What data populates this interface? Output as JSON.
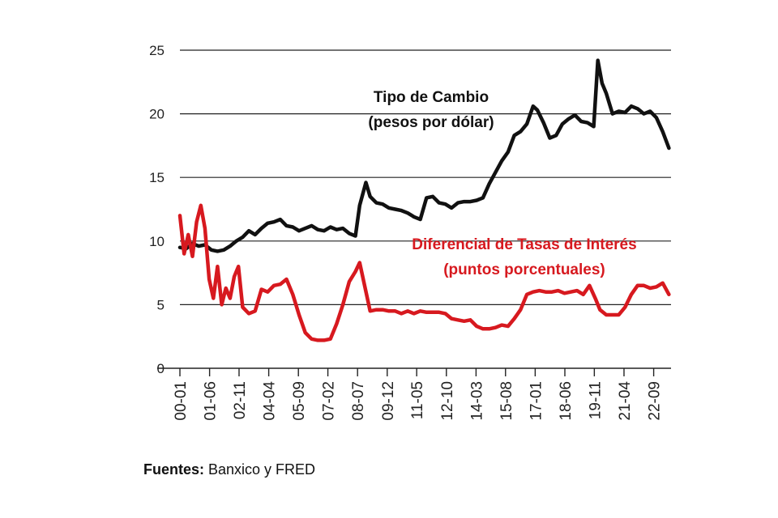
{
  "chart_data": {
    "type": "line",
    "title": "",
    "xlabel": "",
    "ylabel": "",
    "ylim": [
      0,
      25
    ],
    "yticks": [
      0,
      5,
      10,
      15,
      20,
      25
    ],
    "xlim": [
      2000.0,
      2023.5
    ],
    "xtick_labels": [
      "00-01",
      "01-06",
      "02-11",
      "04-04",
      "05-09",
      "07-02",
      "08-07",
      "09-12",
      "11-05",
      "12-10",
      "14-03",
      "15-08",
      "17-01",
      "18-06",
      "19-11",
      "21-04",
      "22-09"
    ],
    "xtick_positions": [
      2000.0,
      2001.42,
      2002.83,
      2004.25,
      2005.67,
      2007.08,
      2008.5,
      2009.92,
      2011.33,
      2012.75,
      2014.17,
      2015.58,
      2017.0,
      2018.42,
      2019.83,
      2021.25,
      2022.67
    ],
    "series": [
      {
        "name": "Tipo de Cambio",
        "label_lines": [
          "Tipo de Cambio",
          "(pesos por dólar)"
        ],
        "color": "#111111",
        "x": [
          2000.0,
          2000.3,
          2000.6,
          2000.9,
          2001.2,
          2001.5,
          2001.8,
          2002.1,
          2002.4,
          2002.7,
          2003.0,
          2003.3,
          2003.6,
          2003.9,
          2004.2,
          2004.5,
          2004.8,
          2005.1,
          2005.4,
          2005.7,
          2006.0,
          2006.3,
          2006.6,
          2006.9,
          2007.2,
          2007.5,
          2007.8,
          2008.1,
          2008.4,
          2008.6,
          2008.9,
          2009.1,
          2009.4,
          2009.7,
          2010.0,
          2010.3,
          2010.6,
          2010.9,
          2011.2,
          2011.5,
          2011.8,
          2012.1,
          2012.4,
          2012.7,
          2013.0,
          2013.3,
          2013.6,
          2013.9,
          2014.2,
          2014.5,
          2014.8,
          2015.1,
          2015.4,
          2015.7,
          2016.0,
          2016.3,
          2016.6,
          2016.9,
          2017.1,
          2017.4,
          2017.7,
          2018.0,
          2018.3,
          2018.6,
          2018.9,
          2019.2,
          2019.5,
          2019.8,
          2020.0,
          2020.2,
          2020.4,
          2020.7,
          2021.0,
          2021.3,
          2021.6,
          2021.9,
          2022.2,
          2022.5,
          2022.8,
          2023.1,
          2023.4
        ],
        "y": [
          9.5,
          9.4,
          9.8,
          9.6,
          9.7,
          9.3,
          9.2,
          9.3,
          9.6,
          10.0,
          10.3,
          10.8,
          10.5,
          11.0,
          11.4,
          11.5,
          11.7,
          11.2,
          11.1,
          10.8,
          11.0,
          11.2,
          10.9,
          10.8,
          11.1,
          10.9,
          11.0,
          10.6,
          10.4,
          12.8,
          14.6,
          13.5,
          13.0,
          12.9,
          12.6,
          12.5,
          12.4,
          12.2,
          11.9,
          11.7,
          13.4,
          13.5,
          13.0,
          12.9,
          12.6,
          13.0,
          13.1,
          13.1,
          13.2,
          13.4,
          14.5,
          15.4,
          16.3,
          17.0,
          18.3,
          18.6,
          19.2,
          20.6,
          20.3,
          19.3,
          18.1,
          18.3,
          19.2,
          19.6,
          19.9,
          19.4,
          19.3,
          19.0,
          24.2,
          22.4,
          21.6,
          20.0,
          20.2,
          20.1,
          20.6,
          20.4,
          20.0,
          20.2,
          19.7,
          18.6,
          17.3
        ]
      },
      {
        "name": "Diferencial de Tasas de Interés",
        "label_lines": [
          "Diferencial de Tasas de Interés",
          "(puntos porcentuales)"
        ],
        "color": "#d7191f",
        "x": [
          2000.0,
          2000.2,
          2000.4,
          2000.6,
          2000.8,
          2001.0,
          2001.2,
          2001.4,
          2001.6,
          2001.8,
          2002.0,
          2002.2,
          2002.4,
          2002.6,
          2002.8,
          2003.0,
          2003.3,
          2003.6,
          2003.9,
          2004.2,
          2004.5,
          2004.8,
          2005.1,
          2005.4,
          2005.7,
          2006.0,
          2006.3,
          2006.6,
          2006.9,
          2007.2,
          2007.5,
          2007.8,
          2008.1,
          2008.4,
          2008.6,
          2008.8,
          2009.1,
          2009.4,
          2009.7,
          2010.0,
          2010.3,
          2010.6,
          2010.9,
          2011.2,
          2011.5,
          2011.8,
          2012.1,
          2012.4,
          2012.7,
          2013.0,
          2013.3,
          2013.6,
          2013.9,
          2014.2,
          2014.5,
          2014.8,
          2015.1,
          2015.4,
          2015.7,
          2016.0,
          2016.3,
          2016.6,
          2016.9,
          2017.2,
          2017.5,
          2017.8,
          2018.1,
          2018.4,
          2018.7,
          2019.0,
          2019.3,
          2019.6,
          2019.9,
          2020.1,
          2020.4,
          2020.7,
          2021.0,
          2021.3,
          2021.6,
          2021.9,
          2022.2,
          2022.5,
          2022.8,
          2023.1,
          2023.4
        ],
        "y": [
          12.0,
          9.0,
          10.5,
          8.8,
          11.5,
          12.8,
          11.0,
          7.0,
          5.5,
          8.0,
          5.0,
          6.3,
          5.5,
          7.2,
          8.0,
          4.8,
          4.3,
          4.5,
          6.2,
          6.0,
          6.5,
          6.6,
          7.0,
          5.8,
          4.2,
          2.8,
          2.3,
          2.2,
          2.2,
          2.3,
          3.5,
          5.0,
          6.8,
          7.6,
          8.3,
          6.8,
          4.5,
          4.6,
          4.6,
          4.5,
          4.5,
          4.3,
          4.5,
          4.3,
          4.5,
          4.4,
          4.4,
          4.4,
          4.3,
          3.9,
          3.8,
          3.7,
          3.8,
          3.3,
          3.1,
          3.1,
          3.2,
          3.4,
          3.3,
          3.9,
          4.6,
          5.8,
          6.0,
          6.1,
          6.0,
          6.0,
          6.1,
          5.9,
          6.0,
          6.1,
          5.8,
          6.5,
          5.4,
          4.6,
          4.2,
          4.2,
          4.2,
          4.8,
          5.8,
          6.5,
          6.5,
          6.3,
          6.4,
          6.7,
          5.8
        ]
      }
    ],
    "source_label": "Fuentes:",
    "source_text": " Banxico y FRED"
  }
}
